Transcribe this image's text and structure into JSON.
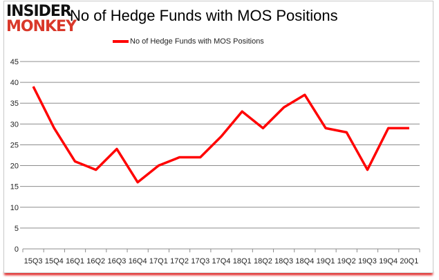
{
  "logo": {
    "line1": "INSIDER",
    "line2": "MONKEY"
  },
  "chart_data": {
    "type": "line",
    "title": "No of Hedge Funds with MOS Positions",
    "categories": [
      "15Q3",
      "15Q4",
      "16Q1",
      "16Q2",
      "16Q3",
      "16Q4",
      "17Q1",
      "17Q2",
      "17Q3",
      "17Q4",
      "18Q1",
      "18Q2",
      "18Q3",
      "18Q4",
      "19Q1",
      "19Q2",
      "19Q3",
      "19Q4",
      "20Q1"
    ],
    "series": [
      {
        "name": "No of Hedge Funds with MOS Positions",
        "color": "#ff0000",
        "values": [
          39,
          29,
          21,
          19,
          24,
          16,
          20,
          22,
          22,
          27,
          33,
          29,
          34,
          37,
          29,
          28,
          19,
          29,
          29
        ]
      }
    ],
    "ylim": [
      0,
      45
    ],
    "yticks": [
      0,
      5,
      10,
      15,
      20,
      25,
      30,
      35,
      40,
      45
    ],
    "grid": true,
    "legend": "top"
  }
}
